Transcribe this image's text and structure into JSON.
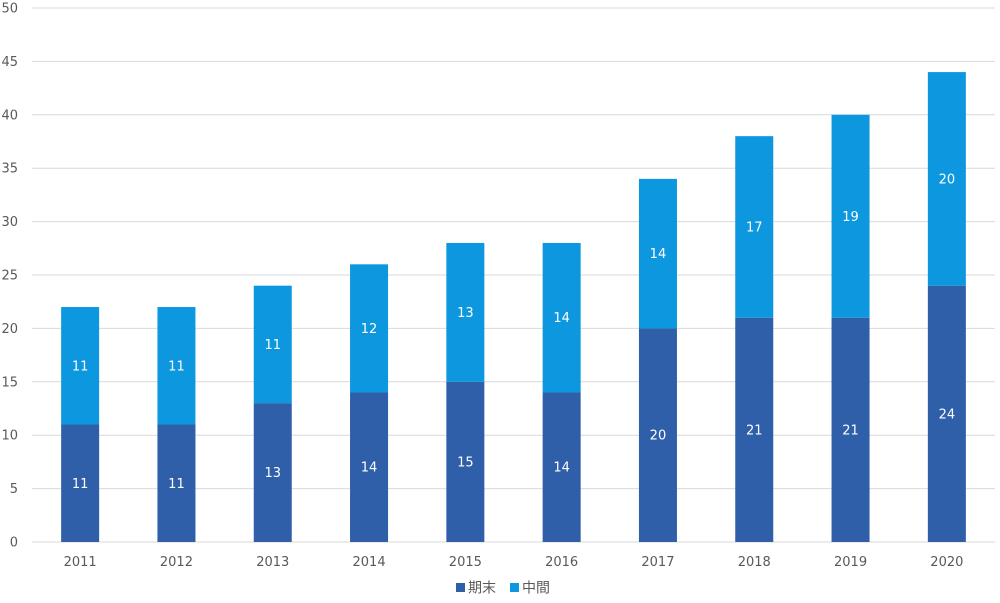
{
  "chart_data": {
    "type": "bar",
    "stacked": true,
    "categories": [
      "2011",
      "2012",
      "2013",
      "2014",
      "2015",
      "2016",
      "2017",
      "2018",
      "2019",
      "2020"
    ],
    "series": [
      {
        "name": "期末",
        "color": "#2E5FA8",
        "values": [
          11,
          11,
          13,
          14,
          15,
          14,
          20,
          21,
          21,
          24
        ]
      },
      {
        "name": "中間",
        "color": "#0D97DF",
        "values": [
          11,
          11,
          11,
          12,
          13,
          14,
          14,
          17,
          19,
          20
        ]
      }
    ],
    "ylim": [
      0,
      50
    ],
    "ytick_step": 5,
    "yticks": [
      "0",
      "5",
      "10",
      "15",
      "20",
      "25",
      "30",
      "35",
      "40",
      "45",
      "50"
    ],
    "grid": true,
    "gridline_color": "#D9D9D9",
    "legend_position": "bottom"
  }
}
